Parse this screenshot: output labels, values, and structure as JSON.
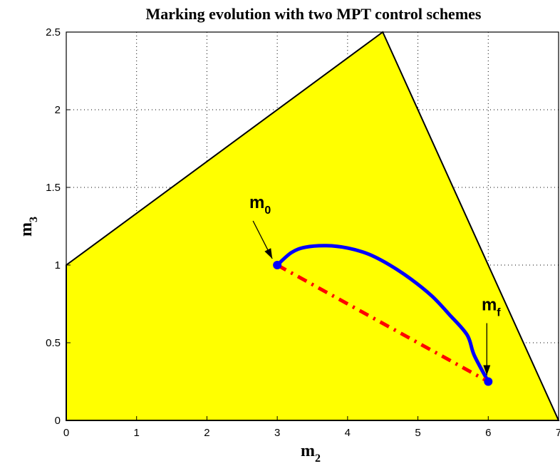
{
  "chart_data": {
    "type": "area",
    "title": "Marking evolution with two MPT control schemes",
    "xlabel": "m",
    "xlabel_sub": "2",
    "ylabel": "m",
    "ylabel_sub": "3",
    "xlim": [
      0,
      7
    ],
    "ylim": [
      0,
      2.5
    ],
    "xticks": [
      0,
      1,
      2,
      3,
      4,
      5,
      6,
      7
    ],
    "xtick_labels": [
      "0",
      "1",
      "2",
      "3",
      "4",
      "5",
      "6",
      "7"
    ],
    "yticks": [
      0,
      0.5,
      1,
      1.5,
      2,
      2.5
    ],
    "ytick_labels": [
      "0",
      "0.5",
      "1",
      "1.5",
      "2",
      "2.5"
    ],
    "grid": true,
    "region": {
      "color": "#ffff00",
      "vertices": [
        [
          0,
          0
        ],
        [
          0,
          1
        ],
        [
          4.5,
          2.5
        ],
        [
          7,
          0
        ]
      ]
    },
    "series": [
      {
        "style": "solid",
        "color": "#0000ff",
        "x": [
          3,
          3.2,
          3.4,
          3.7,
          4.0,
          4.3,
          4.6,
          4.9,
          5.2,
          5.45,
          5.7,
          5.8,
          6.0
        ],
        "y": [
          1.0,
          1.08,
          1.115,
          1.125,
          1.11,
          1.07,
          1.0,
          0.91,
          0.8,
          0.68,
          0.55,
          0.42,
          0.25
        ]
      },
      {
        "style": "dash-dot",
        "color": "#ff0000",
        "x": [
          3,
          6
        ],
        "y": [
          1.0,
          0.25
        ]
      }
    ],
    "points": [
      {
        "x": 3,
        "y": 1.0,
        "color": "#0000ff"
      },
      {
        "x": 6,
        "y": 0.25,
        "color": "#0000ff"
      }
    ],
    "annotations": [
      {
        "text": "m",
        "sub": "0",
        "x": 3,
        "y": 1.0
      },
      {
        "text": "m",
        "sub": "f",
        "x": 6,
        "y": 0.25
      }
    ]
  }
}
